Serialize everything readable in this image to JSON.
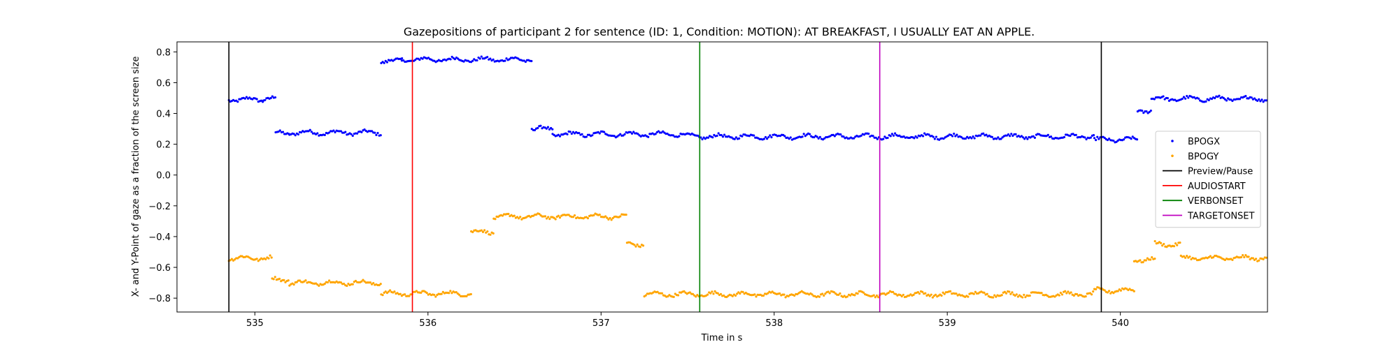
{
  "chart_data": {
    "type": "scatter",
    "title": "Gazepositions of participant 2 for sentence (ID: 1, Condition: MOTION):   AT BREAKFAST, I USUALLY EAT AN APPLE.",
    "xlabel": "Time in s",
    "ylabel": "X- and Y-Point of gaze as a fraction of the screen size",
    "xlim": [
      534.55,
      540.85
    ],
    "ylim": [
      -0.89,
      0.865
    ],
    "xticks": [
      535,
      536,
      537,
      538,
      539,
      540
    ],
    "yticks": [
      0.8,
      0.6,
      0.4,
      0.2,
      0.0,
      -0.2,
      -0.4,
      -0.6,
      -0.8
    ],
    "ytick_labels": [
      "0.8",
      "0.6",
      "0.4",
      "0.2",
      "0.0",
      "−0.2",
      "−0.4",
      "−0.6",
      "−0.8"
    ],
    "grid": false,
    "legend_position": "center-right",
    "series": [
      {
        "name": "BPOGX",
        "color": "#0000ff",
        "marker": "dot",
        "segments": [
          {
            "x0": 534.85,
            "x1": 535.05,
            "y": 0.49
          },
          {
            "x0": 535.05,
            "x1": 535.12,
            "y": 0.5
          },
          {
            "x0": 535.12,
            "x1": 535.2,
            "y": 0.27
          },
          {
            "x0": 535.2,
            "x1": 535.73,
            "y": 0.275
          },
          {
            "x0": 535.73,
            "x1": 535.85,
            "y": 0.74
          },
          {
            "x0": 535.85,
            "x1": 536.6,
            "y": 0.75
          },
          {
            "x0": 536.6,
            "x1": 536.72,
            "y": 0.3
          },
          {
            "x0": 536.72,
            "x1": 537.5,
            "y": 0.265
          },
          {
            "x0": 537.5,
            "x1": 539.85,
            "y": 0.25
          },
          {
            "x0": 539.85,
            "x1": 540.1,
            "y": 0.23
          },
          {
            "x0": 540.1,
            "x1": 540.18,
            "y": 0.42
          },
          {
            "x0": 540.18,
            "x1": 540.85,
            "y": 0.495
          }
        ]
      },
      {
        "name": "BPOGY",
        "color": "#ffa500",
        "marker": "dot",
        "segments": [
          {
            "x0": 534.85,
            "x1": 535.1,
            "y": -0.54
          },
          {
            "x0": 535.1,
            "x1": 535.2,
            "y": -0.68
          },
          {
            "x0": 535.2,
            "x1": 535.73,
            "y": -0.7
          },
          {
            "x0": 535.73,
            "x1": 536.25,
            "y": -0.77
          },
          {
            "x0": 536.25,
            "x1": 536.38,
            "y": -0.37
          },
          {
            "x0": 536.38,
            "x1": 537.15,
            "y": -0.27
          },
          {
            "x0": 537.15,
            "x1": 537.25,
            "y": -0.45
          },
          {
            "x0": 537.25,
            "x1": 539.85,
            "y": -0.775
          },
          {
            "x0": 539.85,
            "x1": 540.08,
            "y": -0.75
          },
          {
            "x0": 540.08,
            "x1": 540.2,
            "y": -0.55
          },
          {
            "x0": 540.2,
            "x1": 540.35,
            "y": -0.45
          },
          {
            "x0": 540.35,
            "x1": 540.85,
            "y": -0.54
          }
        ]
      }
    ],
    "vlines": [
      {
        "name": "Preview/Pause",
        "x": 534.85,
        "color": "#000000"
      },
      {
        "name": "AUDIOSTART",
        "x": 535.91,
        "color": "#ff0000"
      },
      {
        "name": "VERBONSET",
        "x": 537.57,
        "color": "#008000"
      },
      {
        "name": "TARGETONSET",
        "x": 538.61,
        "color": "#bf00bf"
      },
      {
        "name": "Preview/Pause",
        "x": 539.89,
        "color": "#000000"
      }
    ],
    "legend": [
      {
        "label": "BPOGX",
        "kind": "dot",
        "color": "#0000ff"
      },
      {
        "label": "BPOGY",
        "kind": "dot",
        "color": "#ffa500"
      },
      {
        "label": "Preview/Pause",
        "kind": "line",
        "color": "#000000"
      },
      {
        "label": "AUDIOSTART",
        "kind": "line",
        "color": "#ff0000"
      },
      {
        "label": "VERBONSET",
        "kind": "line",
        "color": "#008000"
      },
      {
        "label": "TARGETONSET",
        "kind": "line",
        "color": "#bf00bf"
      }
    ]
  }
}
